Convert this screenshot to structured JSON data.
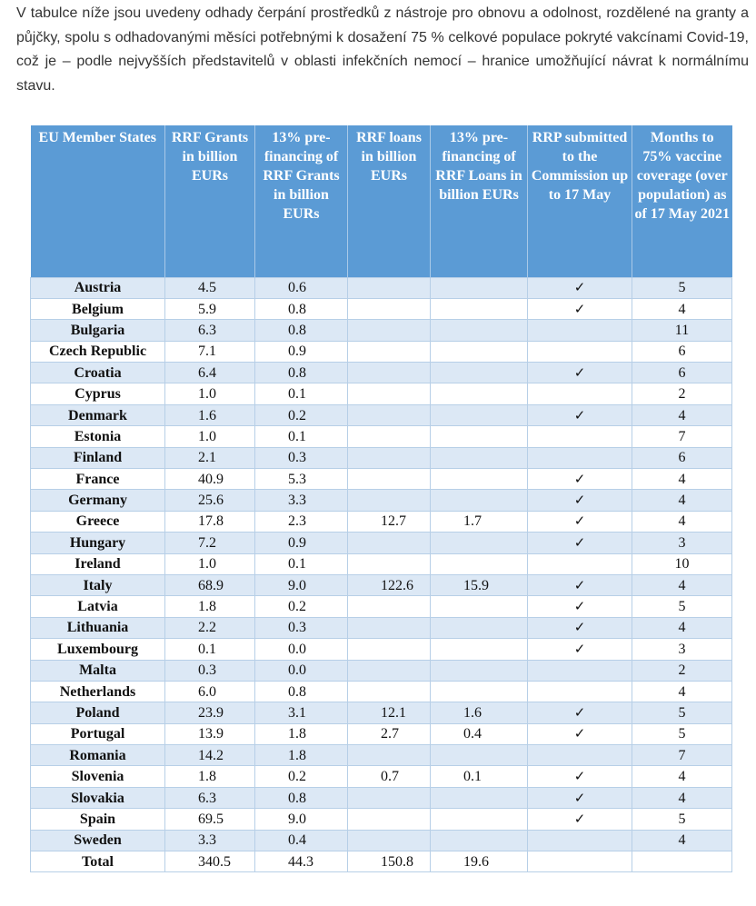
{
  "intro_text": "V tabulce níže jsou uvedeny odhady čerpání prostředků z nástroje pro obnovu a odolnost, rozdělené na granty a půjčky, spolu s odhadovanými měsíci potřebnými k dosažení 75 % celkové populace pokryté vakcínami Covid-19, což je – podle nejvyšších představitelů v oblasti infekčních nemocí – hranice umožňující návrat k normálnímu stavu.",
  "table": {
    "headers": [
      "EU Member States",
      "RRF Grants in billion EURs",
      "13% pre-financing of RRF Grants in billion EURs",
      "RRF loans in billion EURs",
      "13% pre-financing of RRF Loans in billion EURs",
      "RRP submitted to the Commission up to 17 May",
      "Months to 75% vaccine coverage (over population) as of 17 May 2021"
    ],
    "check_symbol": "✓",
    "rows": [
      [
        "Austria",
        "4.5",
        "0.6",
        "",
        "",
        "✓",
        "5"
      ],
      [
        "Belgium",
        "5.9",
        "0.8",
        "",
        "",
        "✓",
        "4"
      ],
      [
        "Bulgaria",
        "6.3",
        "0.8",
        "",
        "",
        "",
        "11"
      ],
      [
        "Czech Republic",
        "7.1",
        "0.9",
        "",
        "",
        "",
        "6"
      ],
      [
        "Croatia",
        "6.4",
        "0.8",
        "",
        "",
        "✓",
        "6"
      ],
      [
        "Cyprus",
        "1.0",
        "0.1",
        "",
        "",
        "",
        "2"
      ],
      [
        "Denmark",
        "1.6",
        "0.2",
        "",
        "",
        "✓",
        "4"
      ],
      [
        "Estonia",
        "1.0",
        "0.1",
        "",
        "",
        "",
        "7"
      ],
      [
        "Finland",
        "2.1",
        "0.3",
        "",
        "",
        "",
        "6"
      ],
      [
        "France",
        "40.9",
        "5.3",
        "",
        "",
        "✓",
        "4"
      ],
      [
        "Germany",
        "25.6",
        "3.3",
        "",
        "",
        "✓",
        "4"
      ],
      [
        "Greece",
        "17.8",
        "2.3",
        "12.7",
        "1.7",
        "✓",
        "4"
      ],
      [
        "Hungary",
        "7.2",
        "0.9",
        "",
        "",
        "✓",
        "3"
      ],
      [
        "Ireland",
        "1.0",
        "0.1",
        "",
        "",
        "",
        "10"
      ],
      [
        "Italy",
        "68.9",
        "9.0",
        "122.6",
        "15.9",
        "✓",
        "4"
      ],
      [
        "Latvia",
        "1.8",
        "0.2",
        "",
        "",
        "✓",
        "5"
      ],
      [
        "Lithuania",
        "2.2",
        "0.3",
        "",
        "",
        "✓",
        "4"
      ],
      [
        "Luxembourg",
        "0.1",
        "0.0",
        "",
        "",
        "✓",
        "3"
      ],
      [
        "Malta",
        "0.3",
        "0.0",
        "",
        "",
        "",
        "2"
      ],
      [
        "Netherlands",
        "6.0",
        "0.8",
        "",
        "",
        "",
        "4"
      ],
      [
        "Poland",
        "23.9",
        "3.1",
        "12.1",
        "1.6",
        "✓",
        "5"
      ],
      [
        "Portugal",
        "13.9",
        "1.8",
        "2.7",
        "0.4",
        "✓",
        "5"
      ],
      [
        "Romania",
        "14.2",
        "1.8",
        "",
        "",
        "",
        "7"
      ],
      [
        "Slovenia",
        "1.8",
        "0.2",
        "0.7",
        "0.1",
        "✓",
        "4"
      ],
      [
        "Slovakia",
        "6.3",
        "0.8",
        "",
        "",
        "✓",
        "4"
      ],
      [
        "Spain",
        "69.5",
        "9.0",
        "",
        "",
        "✓",
        "5"
      ],
      [
        "Sweden",
        "3.3",
        "0.4",
        "",
        "",
        "",
        "4"
      ]
    ],
    "total": [
      "Total",
      "340.5",
      "44.3",
      "150.8",
      "19.6",
      "",
      ""
    ]
  }
}
